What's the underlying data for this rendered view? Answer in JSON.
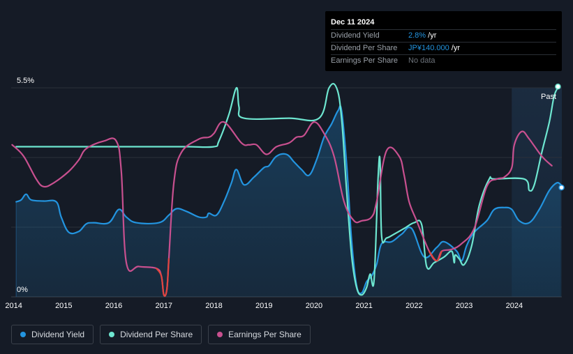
{
  "tooltip": {
    "date": "Dec 11 2024",
    "rows": [
      {
        "label": "Dividend Yield",
        "value": "2.8%",
        "unit": " /yr"
      },
      {
        "label": "Dividend Per Share",
        "value": "JP¥140.000",
        "unit": " /yr"
      },
      {
        "label": "Earnings Per Share",
        "value": "No data",
        "unit": ""
      }
    ]
  },
  "past_label": "Past",
  "legend": [
    {
      "label": "Dividend Yield",
      "color": "#2394df"
    },
    {
      "label": "Dividend Per Share",
      "color": "#6ee6d0"
    },
    {
      "label": "Earnings Per Share",
      "color": "#c8508f"
    }
  ],
  "chart_data": {
    "type": "line",
    "title": "",
    "xlabel": "",
    "ylabel": "",
    "ylim": [
      0,
      5.5
    ],
    "xlim": [
      2013.95,
      2024.95
    ],
    "y_tick_labels": [
      "0%",
      "5.5%"
    ],
    "x_ticks": [
      2014,
      2015,
      2016,
      2017,
      2018,
      2019,
      2020,
      2021,
      2022,
      2023,
      2024
    ],
    "x_tick_labels": [
      "2014",
      "2015",
      "2016",
      "2017",
      "2018",
      "2019",
      "2020",
      "2021",
      "2022",
      "2023",
      "2024"
    ],
    "past_region_start": 2023.95,
    "series": [
      {
        "name": "Dividend Yield",
        "color": "#2394df",
        "area": true,
        "x": [
          2014.05,
          2014.15,
          2014.25,
          2014.35,
          2014.6,
          2014.85,
          2014.95,
          2015.1,
          2015.3,
          2015.45,
          2015.6,
          2015.9,
          2016.1,
          2016.25,
          2016.45,
          2016.9,
          2017.1,
          2017.25,
          2017.45,
          2017.7,
          2017.85,
          2017.9,
          2018.05,
          2018.2,
          2018.35,
          2018.45,
          2018.6,
          2018.8,
          2019.0,
          2019.1,
          2019.25,
          2019.45,
          2019.6,
          2019.75,
          2019.9,
          2020.05,
          2020.2,
          2020.35,
          2020.48,
          2020.55,
          2020.65,
          2020.75,
          2020.85,
          2020.95,
          2021.05,
          2021.15,
          2021.25,
          2021.35,
          2021.55,
          2021.75,
          2021.95,
          2022.2,
          2022.45,
          2022.6,
          2022.85,
          2022.95,
          2023.05,
          2023.2,
          2023.45,
          2023.6,
          2023.8,
          2023.95,
          2024.1,
          2024.3,
          2024.5,
          2024.7,
          2024.85,
          2024.93
        ],
        "y": [
          2.5,
          2.55,
          2.7,
          2.55,
          2.52,
          2.5,
          2.1,
          1.7,
          1.72,
          1.92,
          1.95,
          1.95,
          2.3,
          2.1,
          1.95,
          1.95,
          2.15,
          2.32,
          2.25,
          2.1,
          2.1,
          2.2,
          2.15,
          2.5,
          3.0,
          3.35,
          2.95,
          3.15,
          3.4,
          3.45,
          3.7,
          3.75,
          3.55,
          3.35,
          3.2,
          3.6,
          4.2,
          4.55,
          4.9,
          4.9,
          3.5,
          1.5,
          0.3,
          0.1,
          0.4,
          0.55,
          0.85,
          1.4,
          1.45,
          1.65,
          1.8,
          1.05,
          1.3,
          1.45,
          1.2,
          0.95,
          1.35,
          1.7,
          2.0,
          2.3,
          2.35,
          2.3,
          2.0,
          1.95,
          2.3,
          2.8,
          3.0,
          2.95
        ]
      },
      {
        "name": "Dividend Per Share",
        "color": "#6ee6d0",
        "area": false,
        "x": [
          2014.05,
          2014.5,
          2015.0,
          2016.0,
          2017.0,
          2017.5,
          2018.0,
          2018.1,
          2018.3,
          2018.45,
          2018.5,
          2018.6,
          2019.5,
          2020.1,
          2020.3,
          2020.45,
          2020.55,
          2020.65,
          2020.75,
          2020.85,
          2020.95,
          2021.05,
          2021.12,
          2021.2,
          2021.28,
          2021.32,
          2021.35,
          2021.45,
          2021.6,
          2021.8,
          2022.0,
          2022.15,
          2022.25,
          2022.4,
          2022.6,
          2022.75,
          2022.8,
          2022.82,
          2022.9,
          2023.0,
          2023.15,
          2023.3,
          2023.5,
          2023.6,
          2024.2,
          2024.3,
          2024.4,
          2024.55,
          2024.7,
          2024.8,
          2024.9
        ],
        "y": [
          3.95,
          3.95,
          3.95,
          3.95,
          3.95,
          3.95,
          3.95,
          4.1,
          4.8,
          5.5,
          5.0,
          4.7,
          4.7,
          4.7,
          5.5,
          5.5,
          4.7,
          2.8,
          1.1,
          0.25,
          0.05,
          0.25,
          0.6,
          0.45,
          3.15,
          3.55,
          1.6,
          1.55,
          1.65,
          1.8,
          1.95,
          1.9,
          0.8,
          0.9,
          1.05,
          1.2,
          0.9,
          1.1,
          1.0,
          0.85,
          1.35,
          2.4,
          3.1,
          3.1,
          3.1,
          2.8,
          2.95,
          3.8,
          4.6,
          5.3,
          5.55
        ]
      },
      {
        "name": "Earnings Per Share",
        "color": "#c8508f",
        "area": false,
        "x": [
          2013.97,
          2014.2,
          2014.45,
          2014.6,
          2014.8,
          2015.1,
          2015.3,
          2015.45,
          2015.8,
          2016.05,
          2016.15,
          2016.25,
          2016.5,
          2016.85,
          2016.95,
          2017.0,
          2017.06,
          2017.1,
          2017.2,
          2017.35,
          2017.7,
          2017.9,
          2018.0,
          2018.2,
          2018.55,
          2018.7,
          2018.85,
          2019.05,
          2019.25,
          2019.5,
          2019.65,
          2019.8,
          2020.0,
          2020.2,
          2020.4,
          2020.6,
          2020.8,
          2020.95,
          2021.15,
          2021.25,
          2021.45,
          2021.7,
          2021.8,
          2021.9,
          2022.05,
          2022.3,
          2022.45,
          2022.55,
          2022.75,
          2022.95,
          2023.2,
          2023.45,
          2023.65,
          2023.8,
          2023.95,
          2024.0,
          2024.15,
          2024.3,
          2024.55,
          2024.75
        ],
        "y": [
          4.0,
          3.7,
          3.1,
          2.9,
          3.0,
          3.3,
          3.6,
          3.9,
          4.1,
          4.1,
          3.3,
          0.9,
          0.8,
          0.75,
          0.55,
          0.05,
          0.2,
          1.0,
          3.0,
          3.8,
          4.15,
          4.2,
          4.3,
          4.6,
          4.05,
          4.0,
          4.0,
          3.75,
          3.95,
          4.05,
          4.2,
          4.25,
          4.6,
          4.3,
          3.7,
          2.5,
          2.0,
          2.0,
          2.1,
          2.5,
          3.85,
          3.7,
          3.2,
          2.5,
          2.0,
          1.2,
          0.95,
          1.2,
          1.25,
          1.4,
          1.8,
          2.9,
          3.1,
          3.15,
          3.4,
          4.0,
          4.35,
          4.15,
          3.7,
          3.45
        ]
      }
    ]
  }
}
